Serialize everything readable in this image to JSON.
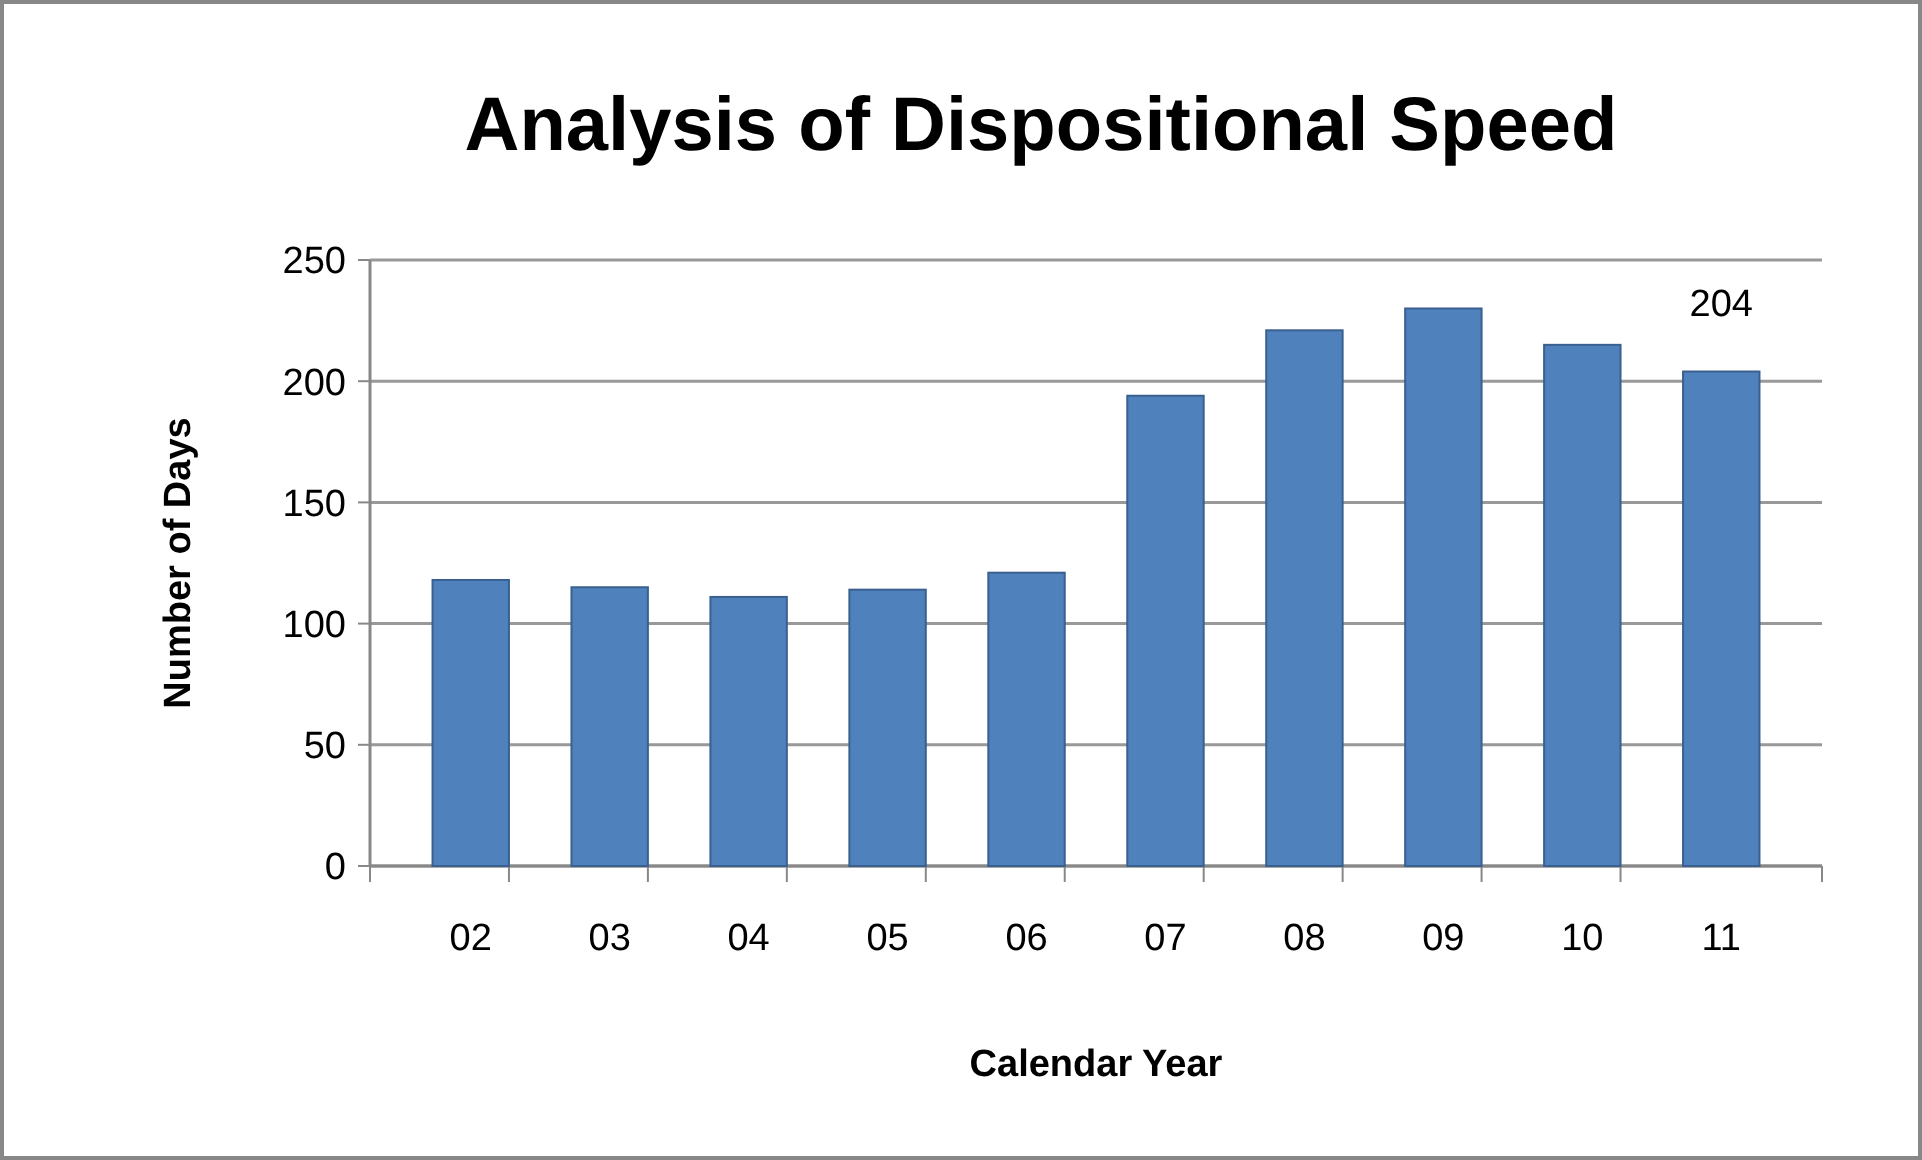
{
  "chart_data": {
    "type": "bar",
    "title": "Analysis of Dispositional Speed",
    "xlabel": "Calendar Year",
    "ylabel": "Number of Days",
    "categories": [
      "02",
      "03",
      "04",
      "05",
      "06",
      "07",
      "08",
      "09",
      "10",
      "11"
    ],
    "values": [
      118,
      115,
      111,
      114,
      121,
      194,
      221,
      230,
      215,
      204
    ],
    "value_labels": [
      null,
      null,
      null,
      null,
      null,
      null,
      null,
      null,
      null,
      "204"
    ],
    "color": "#4f81bd",
    "ylim": [
      0,
      250
    ],
    "yticks": [
      0,
      50,
      100,
      150,
      200,
      250
    ],
    "grid": "y"
  }
}
